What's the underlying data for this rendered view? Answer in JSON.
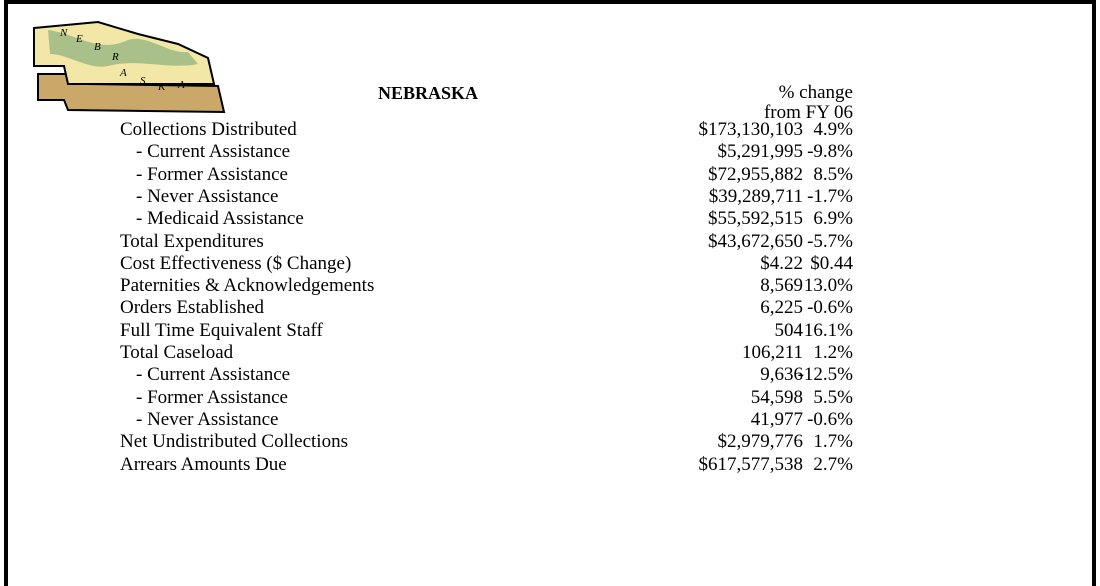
{
  "map_letters": [
    "N",
    "E",
    "B",
    "R",
    "A",
    "S",
    "K",
    "A"
  ],
  "header": {
    "title": "NEBRASKA",
    "change_label": [
      "% change",
      "from FY 06"
    ]
  },
  "table": {
    "rows": [
      [
        "Collections Distributed",
        "$173,130,103",
        "4.9%"
      ],
      [
        "- Current Assistance",
        "$5,291,995",
        "-9.8%"
      ],
      [
        "- Former Assistance",
        "$72,955,882",
        "8.5%"
      ],
      [
        "- Never Assistance",
        "$39,289,711",
        "-1.7%"
      ],
      [
        "- Medicaid Assistance",
        "$55,592,515",
        "6.9%"
      ],
      [
        "Total Expenditures",
        "$43,672,650",
        "-5.7%"
      ],
      [
        "Cost Effectiveness ($ Change)",
        "$4.22",
        "$0.44"
      ],
      [
        "Paternities & Acknowledgements",
        "8,569",
        "13.0%"
      ],
      [
        "Orders Established",
        "6,225",
        "-0.6%"
      ],
      [
        "Full Time Equivalent Staff",
        "504",
        "16.1%"
      ],
      [
        "Total Caseload",
        "106,211",
        "1.2%"
      ],
      [
        "- Current Assistance",
        "9,636",
        "-12.5%"
      ],
      [
        "- Former Assistance",
        "54,598",
        "5.5%"
      ],
      [
        "- Never Assistance",
        "41,977",
        "-0.6%"
      ],
      [
        "Net Undistributed Collections",
        "$2,979,776",
        "1.7%"
      ],
      [
        "Arrears Amounts Due",
        "$617,577,538",
        "2.7%"
      ]
    ]
  }
}
